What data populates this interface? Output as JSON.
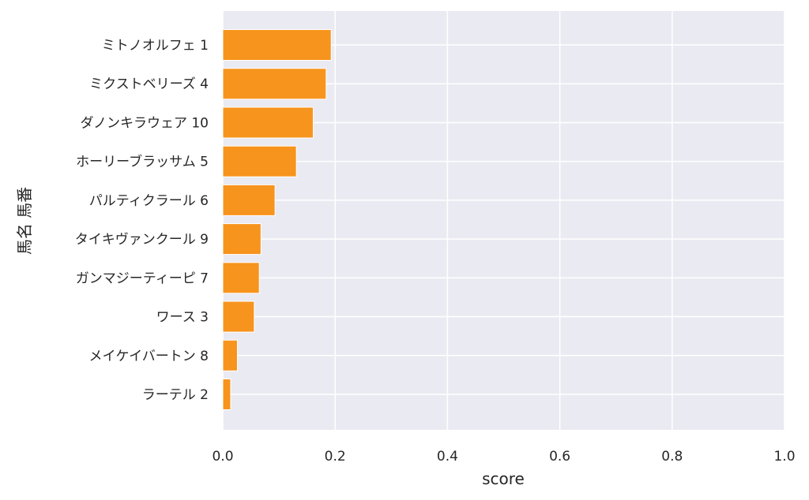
{
  "chart_data": {
    "type": "bar",
    "orientation": "horizontal",
    "categories": [
      "ミトノオルフェ 1",
      "ミクストベリーズ 4",
      "ダノンキラウェア 10",
      "ホーリーブラッサム 5",
      "パルティクラール 6",
      "タイキヴァンクール 9",
      "ガンマジーティーピ 7",
      "ワース 3",
      "メイケイバートン 8",
      "ラーテル 2"
    ],
    "values": [
      0.193,
      0.184,
      0.161,
      0.131,
      0.093,
      0.068,
      0.065,
      0.056,
      0.026,
      0.014
    ],
    "xlabel": "score",
    "ylabel": "馬名 馬番",
    "xlim": [
      0.0,
      1.0
    ],
    "xticks": [
      "0.0",
      "0.2",
      "0.4",
      "0.6",
      "0.8",
      "1.0"
    ],
    "grid": true,
    "colors": {
      "bar": "#f7941d",
      "plot_background": "#eaeaf2",
      "grid": "#ffffff",
      "text": "#262626"
    }
  }
}
